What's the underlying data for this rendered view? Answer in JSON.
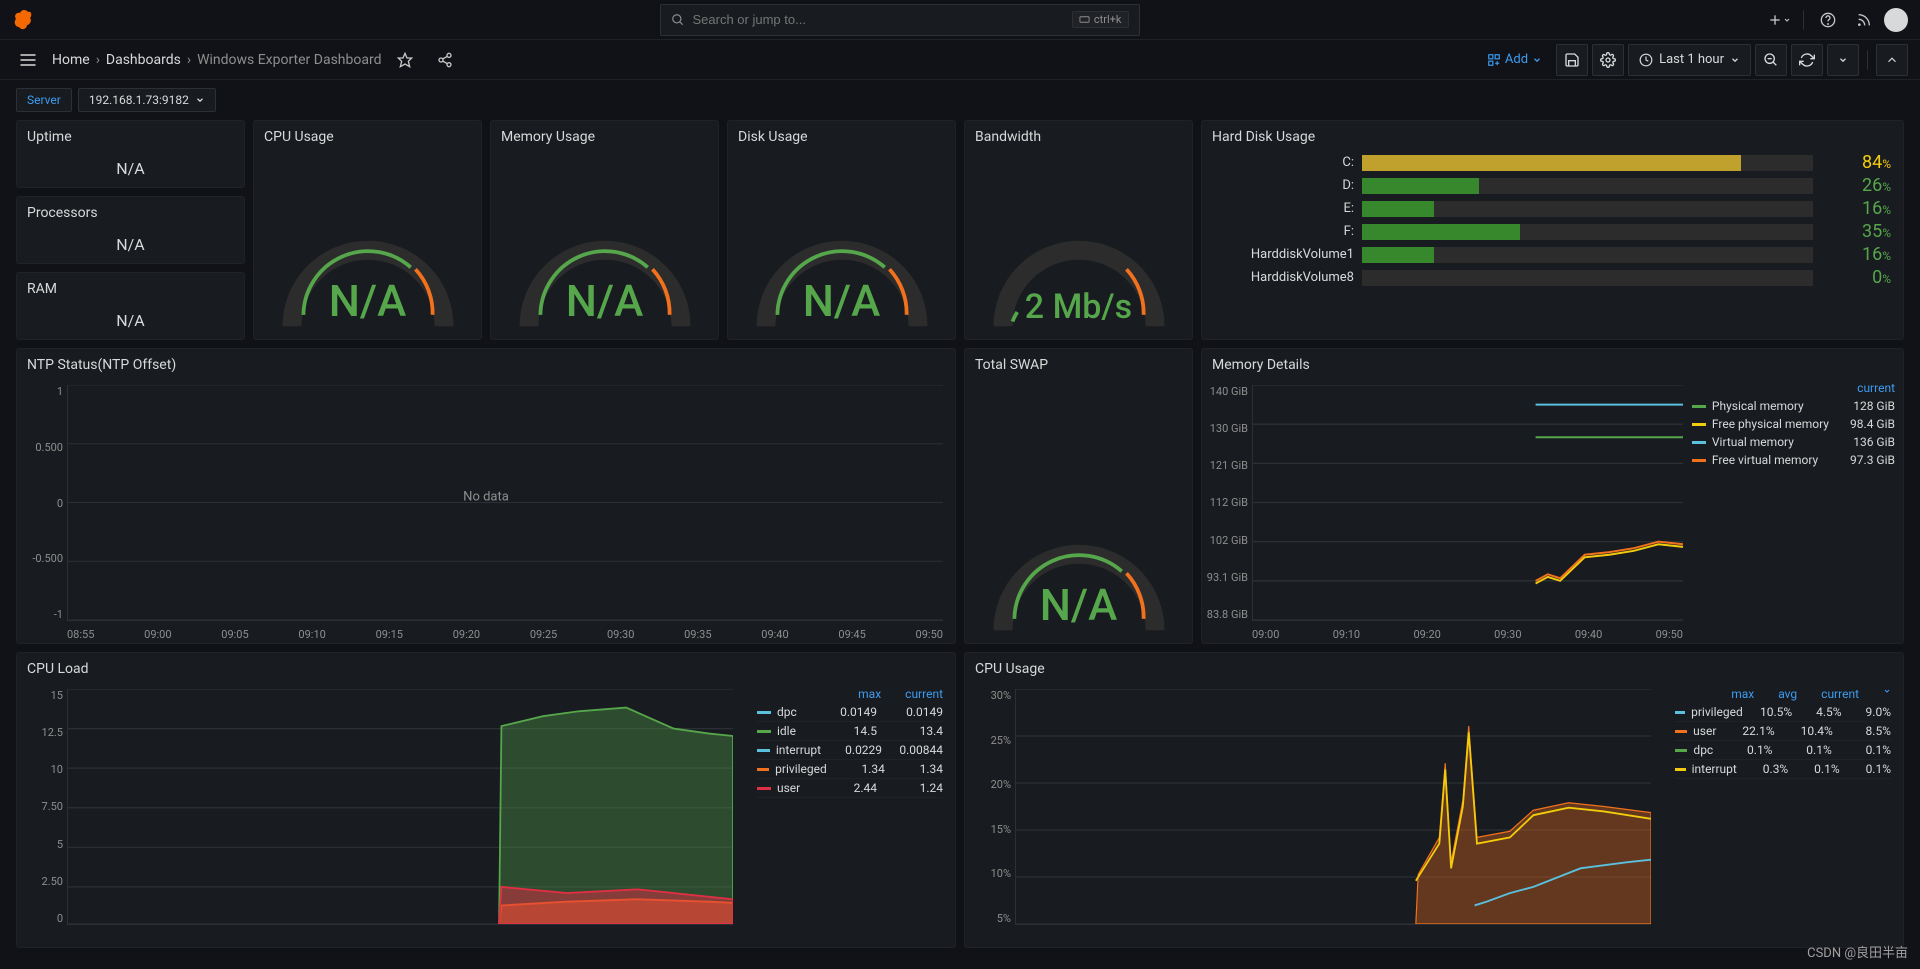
{
  "header": {
    "search_placeholder": "Search or jump to...",
    "kbd_hint": "ctrl+k"
  },
  "nav": {
    "breadcrumb": [
      "Home",
      "Dashboards",
      "Windows Exporter Dashboard"
    ],
    "add_label": "Add",
    "time_label": "Last 1 hour"
  },
  "vars": {
    "server_label": "Server",
    "server_value": "192.168.1.73:9182"
  },
  "stats": {
    "uptime": {
      "title": "Uptime",
      "value": "N/A"
    },
    "processors": {
      "title": "Processors",
      "value": "N/A"
    },
    "ram": {
      "title": "RAM",
      "value": "N/A"
    }
  },
  "gauges": {
    "cpu": {
      "title": "CPU Usage",
      "value": "N/A",
      "color": "#56a64b",
      "fontsize": 44
    },
    "memory": {
      "title": "Memory Usage",
      "value": "N/A",
      "color": "#56a64b",
      "fontsize": 44
    },
    "disk": {
      "title": "Disk Usage",
      "value": "N/A",
      "color": "#56a64b",
      "fontsize": 44
    },
    "bandwidth": {
      "title": "Bandwidth",
      "value": "2 Mb/s",
      "color": "#56a64b",
      "fontsize": 34
    },
    "swap": {
      "title": "Total SWAP",
      "value": "N/A",
      "color": "#56a64b",
      "fontsize": 44
    },
    "arc_track_color": "#2c2c2c",
    "arc_green": "#56a64b",
    "arc_orange": "#f2711c"
  },
  "harddisk": {
    "title": "Hard Disk Usage",
    "rows": [
      {
        "label": "C:",
        "pct": 84,
        "color": "#c0a12d",
        "text_color": "#f2cc0c"
      },
      {
        "label": "D:",
        "pct": 26,
        "color": "#37872d",
        "text_color": "#56a64b"
      },
      {
        "label": "E:",
        "pct": 16,
        "color": "#37872d",
        "text_color": "#56a64b"
      },
      {
        "label": "F:",
        "pct": 35,
        "color": "#37872d",
        "text_color": "#56a64b"
      },
      {
        "label": "HarddiskVolume1",
        "pct": 16,
        "color": "#37872d",
        "text_color": "#56a64b"
      },
      {
        "label": "HarddiskVolume8",
        "pct": 0,
        "color": "#37872d",
        "text_color": "#56a64b"
      }
    ]
  },
  "ntp": {
    "title": "NTP Status(NTP Offset)",
    "no_data": "No data",
    "ylabels": [
      "1",
      "0.500",
      "0",
      "-0.500",
      "-1"
    ],
    "xlabels": [
      "08:55",
      "09:00",
      "09:05",
      "09:10",
      "09:15",
      "09:20",
      "09:25",
      "09:30",
      "09:35",
      "09:40",
      "09:45",
      "09:50"
    ]
  },
  "memdetails": {
    "title": "Memory Details",
    "ylabels": [
      "140 GiB",
      "130 GiB",
      "121 GiB",
      "112 GiB",
      "102 GiB",
      "93.1 GiB",
      "83.8 GiB"
    ],
    "xlabels": [
      "09:00",
      "09:10",
      "09:20",
      "09:30",
      "09:40",
      "09:50"
    ],
    "legend_header": "current",
    "series": [
      {
        "name": "Physical memory",
        "color": "#56a64b",
        "value": "128 GiB"
      },
      {
        "name": "Free physical memory",
        "color": "#f2cc0c",
        "value": "98.4 GiB"
      },
      {
        "name": "Virtual memory",
        "color": "#5bc0de",
        "value": "136 GiB"
      },
      {
        "name": "Free virtual memory",
        "color": "#f2711c",
        "value": "97.3 GiB"
      }
    ]
  },
  "cpuload": {
    "title": "CPU Load",
    "ylabels": [
      "15",
      "12.5",
      "10",
      "7.50",
      "5",
      "2.50",
      "0"
    ],
    "legend_headers": [
      "max",
      "current"
    ],
    "series": [
      {
        "name": "dpc",
        "color": "#5bc0de",
        "max": "0.0149",
        "current": "0.0149"
      },
      {
        "name": "idle",
        "color": "#56a64b",
        "max": "14.5",
        "current": "13.4"
      },
      {
        "name": "interrupt",
        "color": "#5bc0de",
        "max": "0.0229",
        "current": "0.00844"
      },
      {
        "name": "privileged",
        "color": "#f2711c",
        "max": "1.34",
        "current": "1.34"
      },
      {
        "name": "user",
        "color": "#e02f44",
        "max": "2.44",
        "current": "1.24"
      }
    ]
  },
  "cpuusage": {
    "title": "CPU Usage",
    "ylabels": [
      "30%",
      "25%",
      "20%",
      "15%",
      "10%",
      "5%"
    ],
    "legend_headers": [
      "max",
      "avg",
      "current"
    ],
    "series": [
      {
        "name": "privileged",
        "color": "#5bc0de",
        "max": "10.5%",
        "avg": "4.5%",
        "current": "9.0%"
      },
      {
        "name": "user",
        "color": "#f2711c",
        "max": "22.1%",
        "avg": "10.4%",
        "current": "8.5%"
      },
      {
        "name": "dpc",
        "color": "#56a64b",
        "max": "0.1%",
        "avg": "0.1%",
        "current": "0.1%"
      },
      {
        "name": "interrupt",
        "color": "#f2cc0c",
        "max": "0.3%",
        "avg": "0.1%",
        "current": "0.1%"
      }
    ]
  },
  "watermark": "CSDN @良田半亩",
  "colors": {
    "bg": "#111217",
    "panel_bg": "#181b1f",
    "border": "#2c3035",
    "text": "#d8d9da",
    "muted": "#8e8e8e",
    "link": "#3d9cf0"
  }
}
